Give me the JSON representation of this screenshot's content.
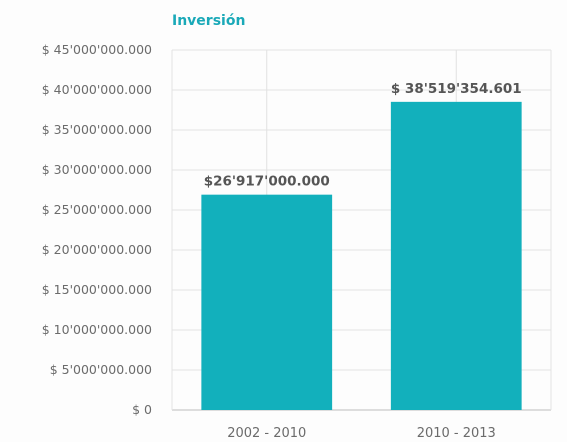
{
  "chart_data": {
    "type": "bar",
    "title": "Inversión",
    "categories": [
      "2002 - 2010",
      "2010 - 2013"
    ],
    "values": [
      26917000000,
      38519354601
    ],
    "data_labels": [
      "$26'917'000.000",
      "$ 38'519'354.601"
    ],
    "ylim": [
      0,
      45000000000
    ],
    "yticks": [
      0,
      5000000000,
      10000000000,
      15000000000,
      20000000000,
      25000000000,
      30000000000,
      35000000000,
      40000000000,
      45000000000
    ],
    "ytick_labels": [
      "$ 0",
      "$ 5'000'000.000",
      "$ 10'000'000.000",
      "$ 15'000'000.000",
      "$ 20'000'000.000",
      "$ 25'000'000.000",
      "$ 30'000'000.000",
      "$ 35'000'000.000",
      "$ 40'000'000.000",
      "$ 45'000'000.000"
    ],
    "grid": true,
    "legend": "none",
    "bar_color": "#12b0bc",
    "title_color": "#1aa9b8"
  }
}
